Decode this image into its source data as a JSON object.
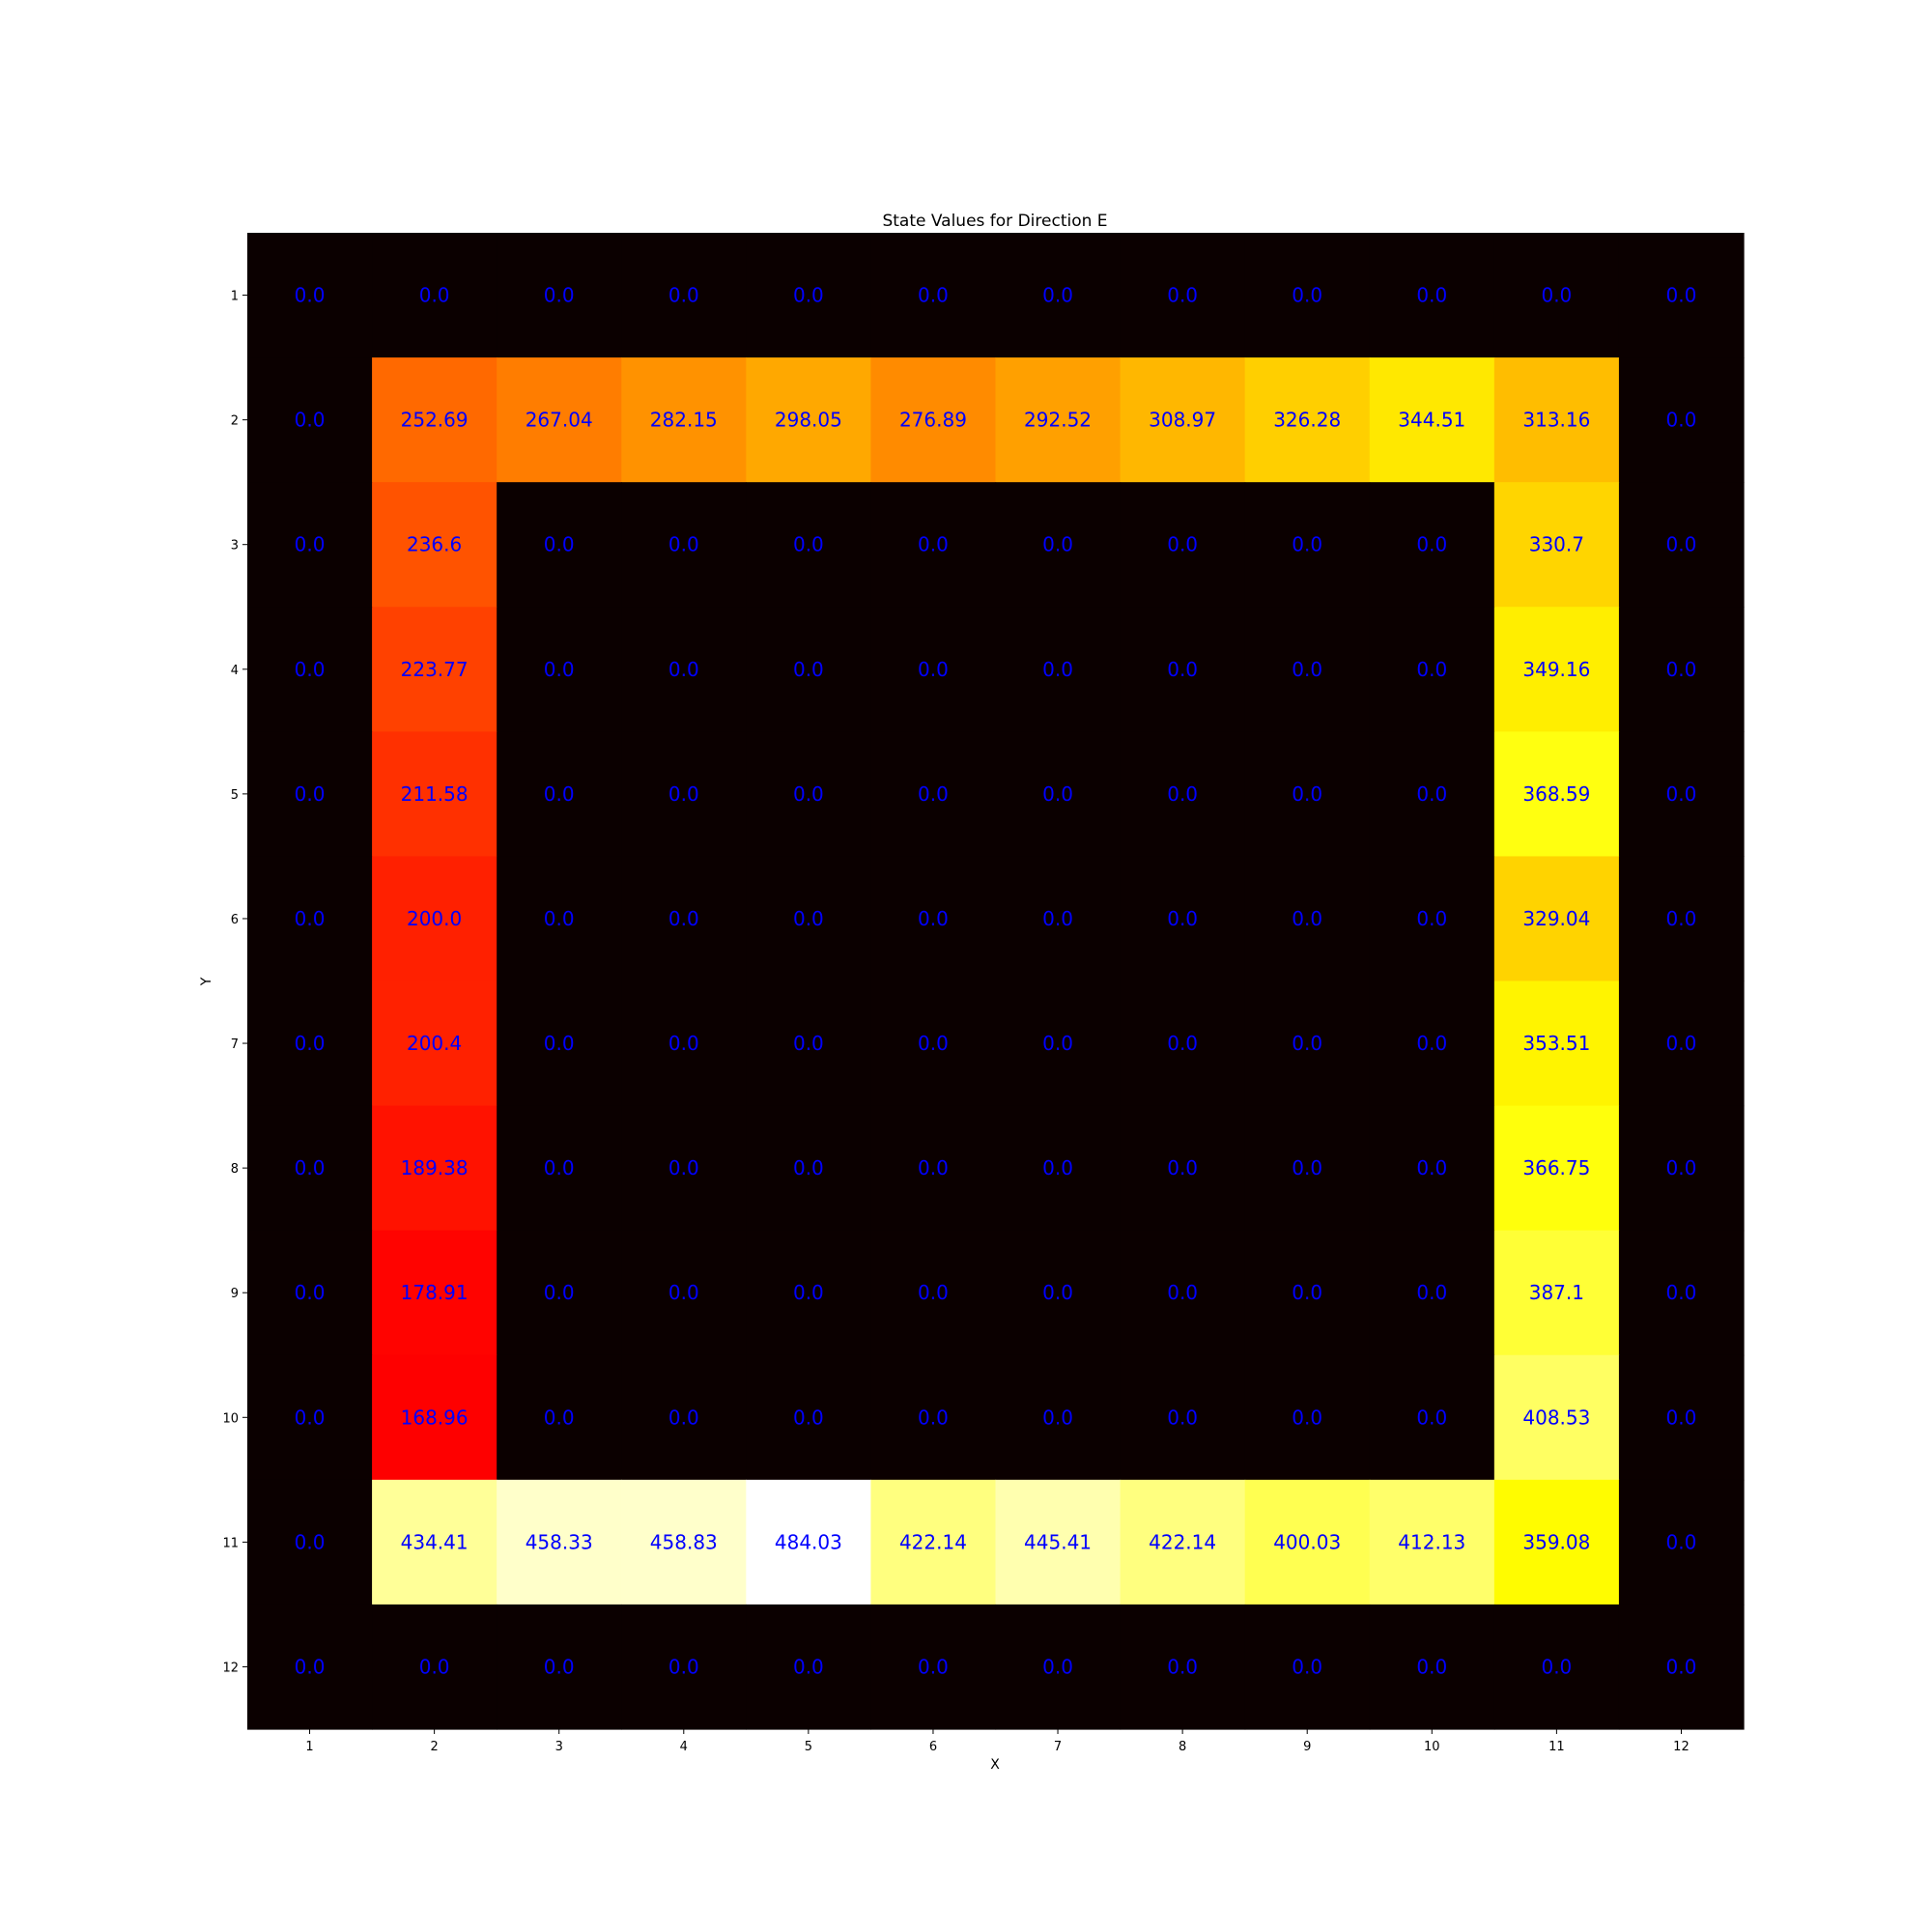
{
  "chart_data": {
    "type": "heatmap",
    "title": "State Values for Direction E",
    "xlabel": "X",
    "ylabel": "Y",
    "x_ticks": [
      "1",
      "2",
      "3",
      "4",
      "5",
      "6",
      "7",
      "8",
      "9",
      "10",
      "11",
      "12"
    ],
    "y_ticks": [
      "1",
      "2",
      "3",
      "4",
      "5",
      "6",
      "7",
      "8",
      "9",
      "10",
      "11",
      "12"
    ],
    "colormap": "hot",
    "value_range": [
      0,
      484.03
    ],
    "annotation_color": "#0000ff",
    "values": [
      [
        0.0,
        0.0,
        0.0,
        0.0,
        0.0,
        0.0,
        0.0,
        0.0,
        0.0,
        0.0,
        0.0,
        0.0
      ],
      [
        0.0,
        252.69,
        267.04,
        282.15,
        298.05,
        276.89,
        292.52,
        308.97,
        326.28,
        344.51,
        313.16,
        0.0
      ],
      [
        0.0,
        236.6,
        0.0,
        0.0,
        0.0,
        0.0,
        0.0,
        0.0,
        0.0,
        0.0,
        330.7,
        0.0
      ],
      [
        0.0,
        223.77,
        0.0,
        0.0,
        0.0,
        0.0,
        0.0,
        0.0,
        0.0,
        0.0,
        349.16,
        0.0
      ],
      [
        0.0,
        211.58,
        0.0,
        0.0,
        0.0,
        0.0,
        0.0,
        0.0,
        0.0,
        0.0,
        368.59,
        0.0
      ],
      [
        0.0,
        200.0,
        0.0,
        0.0,
        0.0,
        0.0,
        0.0,
        0.0,
        0.0,
        0.0,
        329.04,
        0.0
      ],
      [
        0.0,
        200.4,
        0.0,
        0.0,
        0.0,
        0.0,
        0.0,
        0.0,
        0.0,
        0.0,
        353.51,
        0.0
      ],
      [
        0.0,
        189.38,
        0.0,
        0.0,
        0.0,
        0.0,
        0.0,
        0.0,
        0.0,
        0.0,
        366.75,
        0.0
      ],
      [
        0.0,
        178.91,
        0.0,
        0.0,
        0.0,
        0.0,
        0.0,
        0.0,
        0.0,
        0.0,
        387.1,
        0.0
      ],
      [
        0.0,
        168.96,
        0.0,
        0.0,
        0.0,
        0.0,
        0.0,
        0.0,
        0.0,
        0.0,
        408.53,
        0.0
      ],
      [
        0.0,
        434.41,
        458.33,
        458.83,
        484.03,
        422.14,
        445.41,
        422.14,
        400.03,
        412.13,
        359.08,
        0.0
      ],
      [
        0.0,
        0.0,
        0.0,
        0.0,
        0.0,
        0.0,
        0.0,
        0.0,
        0.0,
        0.0,
        0.0,
        0.0
      ]
    ],
    "labels": [
      [
        "0.0",
        "0.0",
        "0.0",
        "0.0",
        "0.0",
        "0.0",
        "0.0",
        "0.0",
        "0.0",
        "0.0",
        "0.0",
        "0.0"
      ],
      [
        "0.0",
        "252.69",
        "267.04",
        "282.15",
        "298.05",
        "276.89",
        "292.52",
        "308.97",
        "326.28",
        "344.51",
        "313.16",
        "0.0"
      ],
      [
        "0.0",
        "236.6",
        "0.0",
        "0.0",
        "0.0",
        "0.0",
        "0.0",
        "0.0",
        "0.0",
        "0.0",
        "330.7",
        "0.0"
      ],
      [
        "0.0",
        "223.77",
        "0.0",
        "0.0",
        "0.0",
        "0.0",
        "0.0",
        "0.0",
        "0.0",
        "0.0",
        "349.16",
        "0.0"
      ],
      [
        "0.0",
        "211.58",
        "0.0",
        "0.0",
        "0.0",
        "0.0",
        "0.0",
        "0.0",
        "0.0",
        "0.0",
        "368.59",
        "0.0"
      ],
      [
        "0.0",
        "200.0",
        "0.0",
        "0.0",
        "0.0",
        "0.0",
        "0.0",
        "0.0",
        "0.0",
        "0.0",
        "329.04",
        "0.0"
      ],
      [
        "0.0",
        "200.4",
        "0.0",
        "0.0",
        "0.0",
        "0.0",
        "0.0",
        "0.0",
        "0.0",
        "0.0",
        "353.51",
        "0.0"
      ],
      [
        "0.0",
        "189.38",
        "0.0",
        "0.0",
        "0.0",
        "0.0",
        "0.0",
        "0.0",
        "0.0",
        "0.0",
        "366.75",
        "0.0"
      ],
      [
        "0.0",
        "178.91",
        "0.0",
        "0.0",
        "0.0",
        "0.0",
        "0.0",
        "0.0",
        "0.0",
        "0.0",
        "387.1",
        "0.0"
      ],
      [
        "0.0",
        "168.96",
        "0.0",
        "0.0",
        "0.0",
        "0.0",
        "0.0",
        "0.0",
        "0.0",
        "0.0",
        "408.53",
        "0.0"
      ],
      [
        "0.0",
        "434.41",
        "458.33",
        "458.83",
        "484.03",
        "422.14",
        "445.41",
        "422.14",
        "400.03",
        "412.13",
        "359.08",
        "0.0"
      ],
      [
        "0.0",
        "0.0",
        "0.0",
        "0.0",
        "0.0",
        "0.0",
        "0.0",
        "0.0",
        "0.0",
        "0.0",
        "0.0",
        "0.0"
      ]
    ]
  }
}
